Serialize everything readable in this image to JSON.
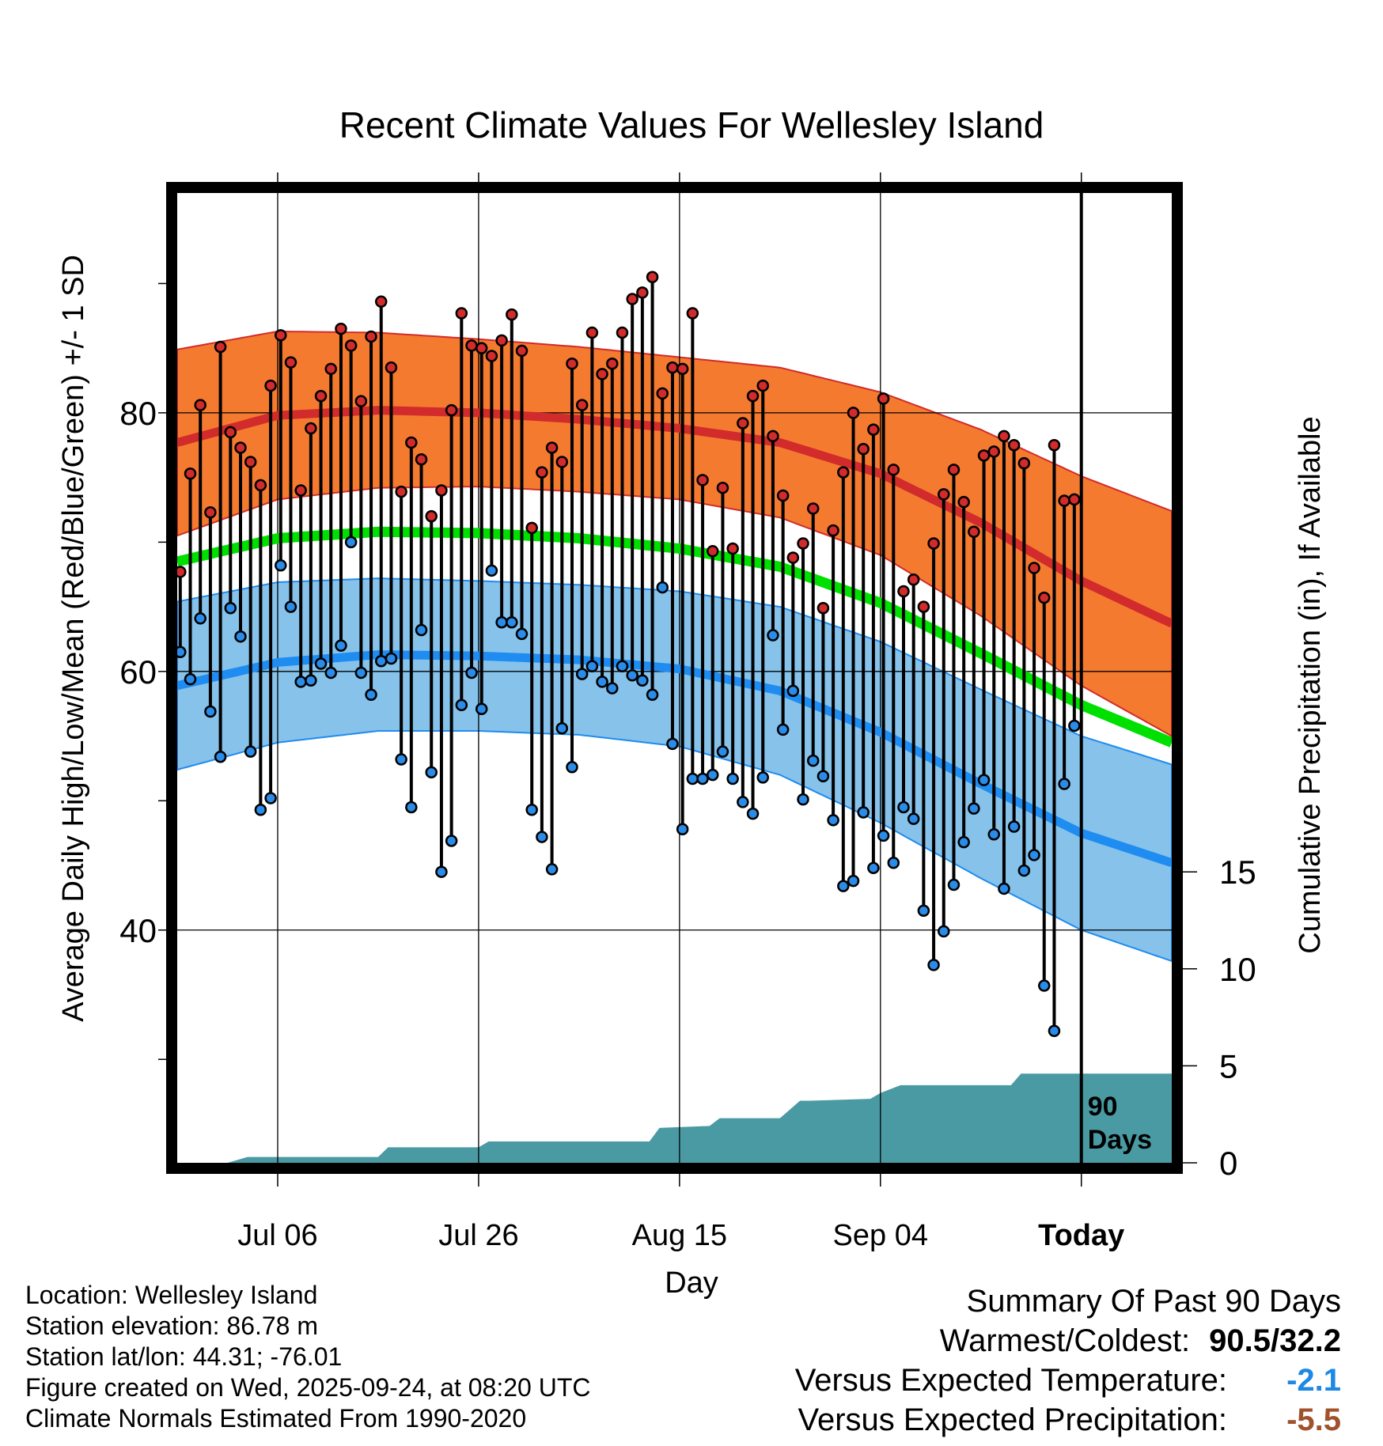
{
  "chart_data": {
    "type": "line",
    "title": "Recent Climate Values For Wellesley Island",
    "xlabel": "Day",
    "ylabel": "Average Daily High/Low/Mean (Red/Blue/Green) +/- 1 SD",
    "ylabel_right": "Cumulative Precipitation (in), If Available",
    "x_ticks": [
      {
        "day": 10,
        "label": "Jul 06"
      },
      {
        "day": 30,
        "label": "Jul 26"
      },
      {
        "day": 50,
        "label": "Aug 15"
      },
      {
        "day": 70,
        "label": "Sep 04"
      },
      {
        "day": 90,
        "label": "Today"
      }
    ],
    "xlim": [
      0,
      99
    ],
    "ylim": [
      22,
      97
    ],
    "y_ticks": [
      40,
      60,
      80
    ],
    "y_minor_ticks": [
      30,
      50,
      70,
      90
    ],
    "precip_ticks": [
      0,
      5,
      10,
      15
    ],
    "precip_ylim": [
      0,
      50
    ],
    "days_label_line1": "90",
    "days_label_line2": "Days",
    "normals": {
      "days": [
        0,
        10,
        20,
        30,
        40,
        50,
        60,
        70,
        80,
        90,
        99
      ],
      "high": [
        77.7,
        79.8,
        80.2,
        80.0,
        79.5,
        78.8,
        77.7,
        75.3,
        71.5,
        67.0,
        63.7
      ],
      "high_sd": [
        7.2,
        6.5,
        6.0,
        5.7,
        5.6,
        5.5,
        5.8,
        6.3,
        7.2,
        8.1,
        8.7
      ],
      "low": [
        58.9,
        60.7,
        61.3,
        61.2,
        60.9,
        60.2,
        58.5,
        55.3,
        51.3,
        47.5,
        45.2
      ],
      "low_sd": [
        6.5,
        6.2,
        5.9,
        5.8,
        5.8,
        6.0,
        6.5,
        7.0,
        7.3,
        7.5,
        7.6
      ],
      "mean": [
        68.5,
        70.3,
        70.8,
        70.7,
        70.3,
        69.5,
        68.1,
        65.3,
        61.4,
        57.4,
        54.5
      ]
    },
    "series": [
      {
        "name": "High",
        "values": [
          67.7,
          75.3,
          80.6,
          72.3,
          85.1,
          78.5,
          77.3,
          76.2,
          74.4,
          82.1,
          86.0,
          83.9,
          74.0,
          78.8,
          81.3,
          83.4,
          86.5,
          85.2,
          80.9,
          85.9,
          88.6,
          83.5,
          73.9,
          77.7,
          76.4,
          72.0,
          74.0,
          80.2,
          87.7,
          85.2,
          85.0,
          84.4,
          85.6,
          87.6,
          84.8,
          71.1,
          75.4,
          77.3,
          76.2,
          83.8,
          80.6,
          86.2,
          83.0,
          83.8,
          86.2,
          88.8,
          89.3,
          90.5,
          81.5,
          83.5,
          83.4,
          87.7,
          74.8,
          69.3,
          74.2,
          69.5,
          79.2,
          81.3,
          82.1,
          78.2,
          73.6,
          68.8,
          69.9,
          72.6,
          64.9,
          70.9,
          75.4,
          80.0,
          77.2,
          78.7,
          81.1,
          75.6,
          66.2,
          67.1,
          65.0,
          69.9,
          73.7,
          75.6,
          73.1,
          70.8,
          76.7,
          77.0,
          78.2,
          77.5,
          76.1,
          68.0,
          65.7,
          77.5,
          73.2,
          73.3
        ]
      },
      {
        "name": "Low",
        "values": [
          61.5,
          59.4,
          64.1,
          56.9,
          53.4,
          64.9,
          62.7,
          53.8,
          49.3,
          50.2,
          68.2,
          65.0,
          59.2,
          59.3,
          60.6,
          59.9,
          62.0,
          70.0,
          59.9,
          58.2,
          60.8,
          61.0,
          53.2,
          49.5,
          63.2,
          52.2,
          44.5,
          46.9,
          57.4,
          59.9,
          57.1,
          67.8,
          63.8,
          63.8,
          62.9,
          49.3,
          47.2,
          44.7,
          55.6,
          52.6,
          59.8,
          60.4,
          59.2,
          58.7,
          60.4,
          59.7,
          59.3,
          58.2,
          66.5,
          54.4,
          47.8,
          51.7,
          51.7,
          52.0,
          53.8,
          51.7,
          49.9,
          49.0,
          51.8,
          62.8,
          55.5,
          58.5,
          50.1,
          53.1,
          51.9,
          48.5,
          43.4,
          43.8,
          49.1,
          44.8,
          47.3,
          45.2,
          49.5,
          48.6,
          41.5,
          37.3,
          39.9,
          43.5,
          46.8,
          49.4,
          51.6,
          47.4,
          43.2,
          48.0,
          44.6,
          45.8,
          35.7,
          32.2,
          51.3,
          55.8
        ]
      }
    ],
    "precip": {
      "days": [
        0,
        5,
        7,
        20,
        21,
        30,
        31,
        47,
        48,
        53,
        54,
        60,
        62,
        63,
        69,
        70,
        72,
        73,
        83,
        84,
        100
      ],
      "values": [
        0,
        0,
        0.3,
        0.3,
        0.8,
        0.8,
        1.1,
        1.1,
        1.8,
        1.9,
        2.3,
        2.3,
        3.2,
        3.2,
        3.3,
        3.6,
        4.0,
        4.0,
        4.0,
        4.6,
        4.6
      ]
    }
  },
  "info": {
    "location": "Location: Wellesley Island",
    "elevation": "Station elevation: 86.78 m",
    "latlon": "Station lat/lon: 44.31; -76.01",
    "created": "Figure created on Wed, 2025-09-24, at 08:20 UTC",
    "normals": "Climate Normals Estimated From 1990-2020"
  },
  "summary": {
    "title": "Summary Of Past 90 Days",
    "warm_cold_label": "Warmest/Coldest:",
    "warm_cold_value": "90.5/32.2",
    "temp_label": "Versus Expected Temperature:",
    "temp_value": "-2.1",
    "temp_color": "#1e88e5",
    "precip_label": "Versus Expected Precipitation:",
    "precip_value": "-5.5",
    "precip_color": "#a0522d"
  },
  "colors": {
    "high_band": "#f47a30",
    "high_line": "#d12b2b",
    "low_band": "#86c2ea",
    "low_line": "#1e8cf0",
    "mean_line": "#00e000",
    "precip_fill": "#4a9aa3",
    "high_dot": "#d12b2b",
    "low_dot": "#2a8ce8"
  }
}
